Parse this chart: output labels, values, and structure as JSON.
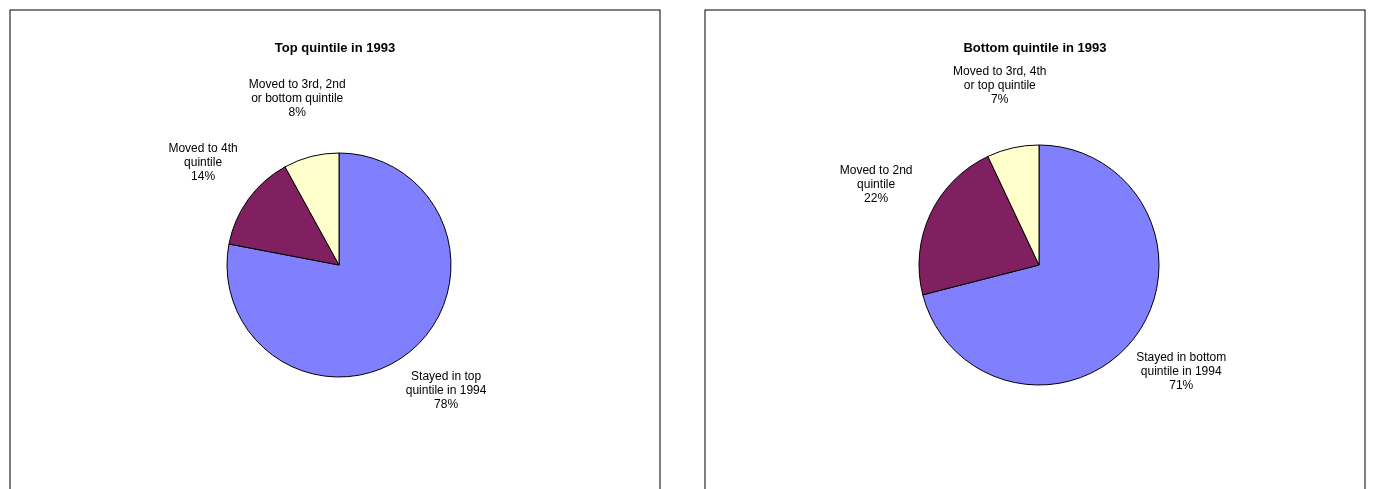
{
  "chart_data": [
    {
      "type": "pie",
      "title": "Top quintile in 1993",
      "categories": [
        "Stayed in top quintile in 1994",
        "Moved to 4th quintile",
        "Moved to 3rd, 2nd or bottom quintile"
      ],
      "values": [
        78,
        14,
        8
      ],
      "colors": [
        "#8080ff",
        "#802060",
        "#ffffcc"
      ],
      "value_labels": [
        "78%",
        "14%",
        "8%"
      ]
    },
    {
      "type": "pie",
      "title": "Bottom quintile in 1993",
      "categories": [
        "Stayed in bottom quintile in 1994",
        "Moved to 2nd quintile",
        "Moved to 3rd, 4th or top quintile"
      ],
      "values": [
        71,
        22,
        7
      ],
      "colors": [
        "#8080ff",
        "#802060",
        "#ffffcc"
      ],
      "value_labels": [
        "71%",
        "22%",
        "7%"
      ]
    }
  ]
}
